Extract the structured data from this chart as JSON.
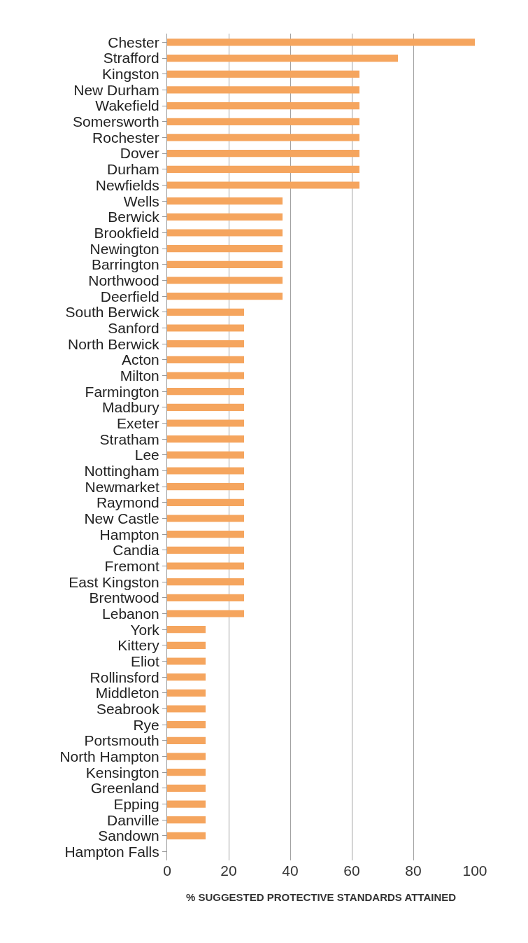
{
  "chart_data": {
    "type": "bar",
    "orientation": "horizontal",
    "xlabel": "% SUGGESTED PROTECTIVE STANDARDS ATTAINED",
    "categories": [
      "Chester",
      "Strafford",
      "Kingston",
      "New Durham",
      "Wakefield",
      "Somersworth",
      "Rochester",
      "Dover",
      "Durham",
      "Newfields",
      "Wells",
      "Berwick",
      "Brookfield",
      "Newington",
      "Barrington",
      "Northwood",
      "Deerfield",
      "South Berwick",
      "Sanford",
      "North Berwick",
      "Acton",
      "Milton",
      "Farmington",
      "Madbury",
      "Exeter",
      "Stratham",
      "Lee",
      "Nottingham",
      "Newmarket",
      "Raymond",
      "New Castle",
      "Hampton",
      "Candia",
      "Fremont",
      "East Kingston",
      "Brentwood",
      "Lebanon",
      "York",
      "Kittery",
      "Eliot",
      "Rollinsford",
      "Middleton",
      "Seabrook",
      "Rye",
      "Portsmouth",
      "North Hampton",
      "Kensington",
      "Greenland",
      "Epping",
      "Danville",
      "Sandown",
      "Hampton Falls"
    ],
    "values": [
      100,
      75,
      62.5,
      62.5,
      62.5,
      62.5,
      62.5,
      62.5,
      62.5,
      62.5,
      37.5,
      37.5,
      37.5,
      37.5,
      37.5,
      37.5,
      37.5,
      25,
      25,
      25,
      25,
      25,
      25,
      25,
      25,
      25,
      25,
      25,
      25,
      25,
      25,
      25,
      25,
      25,
      25,
      25,
      25,
      12.5,
      12.5,
      12.5,
      12.5,
      12.5,
      12.5,
      12.5,
      12.5,
      12.5,
      12.5,
      12.5,
      12.5,
      12.5,
      12.5,
      0
    ],
    "color": "#f5a55e",
    "xlim": [
      0,
      100
    ],
    "xticks": [
      0,
      20,
      40,
      60,
      80,
      100
    ],
    "grid": "x"
  }
}
